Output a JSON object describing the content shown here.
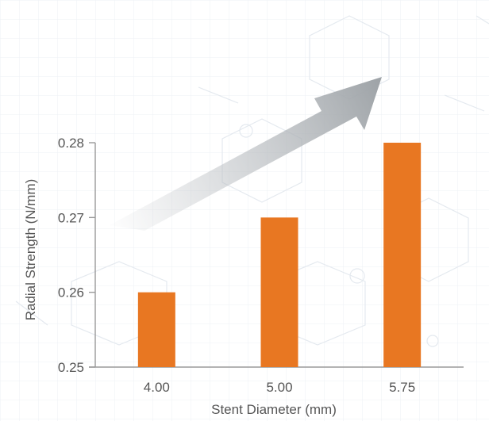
{
  "chart_data": {
    "type": "bar",
    "title": "",
    "xlabel": "Stent Diameter (mm)",
    "ylabel": "Radial Strength (N/mm)",
    "categories": [
      "4.00",
      "5.00",
      "5.75"
    ],
    "values": [
      0.26,
      0.27,
      0.28
    ],
    "ylim": [
      0.25,
      0.28
    ],
    "yticks": [
      "0.25",
      "0.26",
      "0.27",
      "0.28"
    ],
    "bar_color": "#e87722",
    "axis_color": "#9a9a9a",
    "grid": false,
    "legend": "none",
    "annotation": "trend-arrow"
  }
}
